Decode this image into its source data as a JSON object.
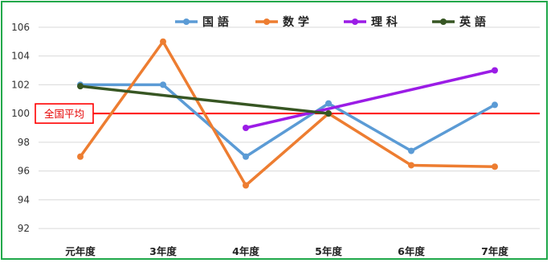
{
  "chart_data": {
    "type": "line",
    "title": "",
    "xlabel": "",
    "ylabel": "",
    "categories": [
      "元年度",
      "3年度",
      "4年度",
      "5年度",
      "6年度",
      "7年度"
    ],
    "ylim": [
      91,
      107
    ],
    "yticks": [
      92,
      94,
      96,
      98,
      100,
      102,
      104,
      106
    ],
    "grid": "horizontal",
    "legend": "top",
    "series": [
      {
        "name": "国 語",
        "color": "#5b9bd5",
        "values": [
          102.0,
          102.0,
          97.0,
          100.7,
          97.4,
          100.6
        ]
      },
      {
        "name": "数 学",
        "color": "#ed7d31",
        "values": [
          97.0,
          105.0,
          95.0,
          100.0,
          96.4,
          96.3
        ]
      },
      {
        "name": "理 科",
        "color": "#9b1ce6",
        "values": [
          null,
          null,
          99.0,
          null,
          null,
          103.0
        ]
      },
      {
        "name": "英 語",
        "color": "#375623",
        "values": [
          101.9,
          null,
          null,
          100.0,
          null,
          null
        ]
      }
    ],
    "reference_line": {
      "label": "全国平均",
      "value": 100,
      "color": "#ff0000"
    }
  }
}
